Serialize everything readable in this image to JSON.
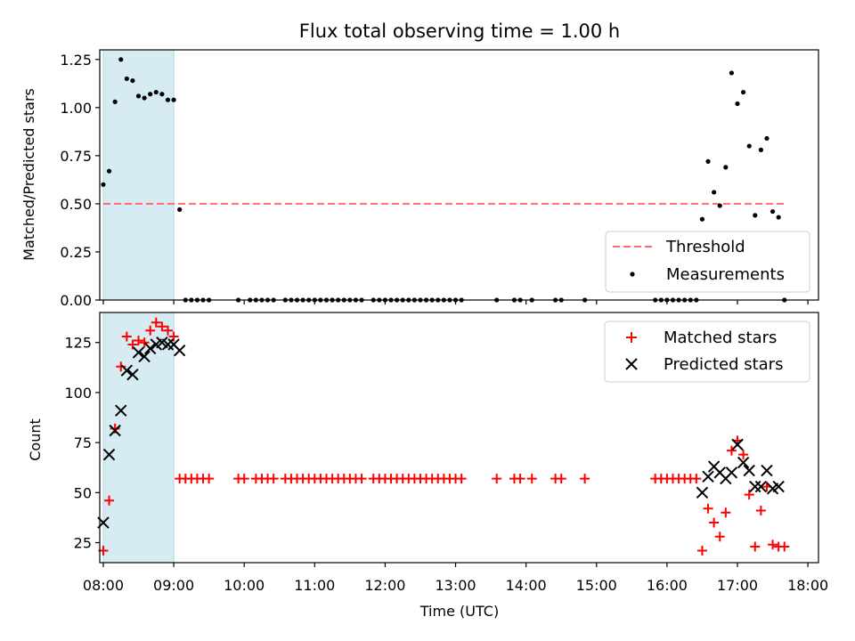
{
  "chart_data": {
    "title": "Flux total observing time = 1.00 h",
    "xlabel": "Time (UTC)",
    "xticks": [
      "08:00",
      "09:00",
      "10:00",
      "11:00",
      "12:00",
      "13:00",
      "14:00",
      "15:00",
      "16:00",
      "17:00",
      "18:00"
    ],
    "xlim_hours": [
      7.95,
      18.15
    ],
    "highlight_span": {
      "from": "08:00",
      "to": "09:00",
      "color": "#add8e6"
    },
    "colors": {
      "measurements": "#000000",
      "threshold": "#ff6b6b",
      "matched": "#ff0000",
      "predicted": "#000000"
    },
    "panels": [
      {
        "type": "scatter",
        "ylabel": "Matched/Predicted stars",
        "ylim": [
          0,
          1.3
        ],
        "yticks": [
          "0.00",
          "0.25",
          "0.50",
          "0.75",
          "1.00",
          "1.25"
        ],
        "legend": {
          "placement": "lower right",
          "entries": [
            "Threshold",
            "Measurements"
          ]
        },
        "threshold": {
          "name": "Threshold",
          "value": 0.5,
          "x_range": [
            "08:00",
            "17:40"
          ]
        },
        "series": [
          {
            "name": "Measurements",
            "marker": "dot",
            "points": [
              [
                "08:00",
                0.6
              ],
              [
                "08:05",
                0.67
              ],
              [
                "08:10",
                1.03
              ],
              [
                "08:15",
                1.25
              ],
              [
                "08:20",
                1.15
              ],
              [
                "08:25",
                1.14
              ],
              [
                "08:30",
                1.06
              ],
              [
                "08:35",
                1.05
              ],
              [
                "08:40",
                1.07
              ],
              [
                "08:45",
                1.08
              ],
              [
                "08:50",
                1.07
              ],
              [
                "08:55",
                1.04
              ],
              [
                "09:00",
                1.04
              ],
              [
                "09:05",
                0.47
              ],
              [
                "09:10",
                0
              ],
              [
                "09:15",
                0
              ],
              [
                "09:20",
                0
              ],
              [
                "09:25",
                0
              ],
              [
                "09:30",
                0
              ],
              [
                "09:55",
                0
              ],
              [
                "10:05",
                0
              ],
              [
                "10:10",
                0
              ],
              [
                "10:15",
                0
              ],
              [
                "10:20",
                0
              ],
              [
                "10:25",
                0
              ],
              [
                "10:35",
                0
              ],
              [
                "10:40",
                0
              ],
              [
                "10:45",
                0
              ],
              [
                "10:50",
                0
              ],
              [
                "10:55",
                0
              ],
              [
                "11:00",
                0
              ],
              [
                "11:05",
                0
              ],
              [
                "11:10",
                0
              ],
              [
                "11:15",
                0
              ],
              [
                "11:20",
                0
              ],
              [
                "11:25",
                0
              ],
              [
                "11:30",
                0
              ],
              [
                "11:35",
                0
              ],
              [
                "11:40",
                0
              ],
              [
                "11:50",
                0
              ],
              [
                "11:55",
                0
              ],
              [
                "12:00",
                0
              ],
              [
                "12:05",
                0
              ],
              [
                "12:10",
                0
              ],
              [
                "12:15",
                0
              ],
              [
                "12:20",
                0
              ],
              [
                "12:25",
                0
              ],
              [
                "12:30",
                0
              ],
              [
                "12:35",
                0
              ],
              [
                "12:40",
                0
              ],
              [
                "12:45",
                0
              ],
              [
                "12:50",
                0
              ],
              [
                "12:55",
                0
              ],
              [
                "13:00",
                0
              ],
              [
                "13:05",
                0
              ],
              [
                "13:35",
                0
              ],
              [
                "13:50",
                0
              ],
              [
                "13:55",
                0
              ],
              [
                "14:05",
                0
              ],
              [
                "14:25",
                0
              ],
              [
                "14:30",
                0
              ],
              [
                "14:50",
                0
              ],
              [
                "15:50",
                0
              ],
              [
                "15:55",
                0
              ],
              [
                "16:00",
                0
              ],
              [
                "16:05",
                0
              ],
              [
                "16:10",
                0
              ],
              [
                "16:15",
                0
              ],
              [
                "16:20",
                0
              ],
              [
                "16:25",
                0
              ],
              [
                "16:30",
                0.42
              ],
              [
                "16:35",
                0.72
              ],
              [
                "16:40",
                0.56
              ],
              [
                "16:45",
                0.49
              ],
              [
                "16:50",
                0.69
              ],
              [
                "16:55",
                1.18
              ],
              [
                "17:00",
                1.02
              ],
              [
                "17:05",
                1.08
              ],
              [
                "17:10",
                0.8
              ],
              [
                "17:15",
                0.44
              ],
              [
                "17:20",
                0.78
              ],
              [
                "17:25",
                0.84
              ],
              [
                "17:30",
                0.46
              ],
              [
                "17:35",
                0.43
              ],
              [
                "17:40",
                0
              ]
            ]
          }
        ]
      },
      {
        "type": "scatter",
        "ylabel": "Count",
        "ylim": [
          15,
          140
        ],
        "yticks": [
          "25",
          "50",
          "75",
          "100",
          "125"
        ],
        "legend": {
          "placement": "upper right",
          "entries": [
            "Matched stars",
            "Predicted stars"
          ]
        },
        "series": [
          {
            "name": "Matched stars",
            "marker": "plus",
            "points": [
              [
                "08:00",
                21
              ],
              [
                "08:05",
                46
              ],
              [
                "08:10",
                82
              ],
              [
                "08:15",
                113
              ],
              [
                "08:20",
                128
              ],
              [
                "08:25",
                124
              ],
              [
                "08:30",
                126
              ],
              [
                "08:35",
                125
              ],
              [
                "08:40",
                131
              ],
              [
                "08:45",
                135
              ],
              [
                "08:50",
                133
              ],
              [
                "08:55",
                131
              ],
              [
                "09:00",
                128
              ],
              [
                "09:05",
                57
              ],
              [
                "09:10",
                57
              ],
              [
                "09:15",
                57
              ],
              [
                "09:20",
                57
              ],
              [
                "09:25",
                57
              ],
              [
                "09:30",
                57
              ],
              [
                "09:55",
                57
              ],
              [
                "10:00",
                57
              ],
              [
                "10:10",
                57
              ],
              [
                "10:15",
                57
              ],
              [
                "10:20",
                57
              ],
              [
                "10:25",
                57
              ],
              [
                "10:35",
                57
              ],
              [
                "10:40",
                57
              ],
              [
                "10:45",
                57
              ],
              [
                "10:50",
                57
              ],
              [
                "10:55",
                57
              ],
              [
                "11:00",
                57
              ],
              [
                "11:05",
                57
              ],
              [
                "11:10",
                57
              ],
              [
                "11:15",
                57
              ],
              [
                "11:20",
                57
              ],
              [
                "11:25",
                57
              ],
              [
                "11:30",
                57
              ],
              [
                "11:35",
                57
              ],
              [
                "11:40",
                57
              ],
              [
                "11:50",
                57
              ],
              [
                "11:55",
                57
              ],
              [
                "12:00",
                57
              ],
              [
                "12:05",
                57
              ],
              [
                "12:10",
                57
              ],
              [
                "12:15",
                57
              ],
              [
                "12:20",
                57
              ],
              [
                "12:25",
                57
              ],
              [
                "12:30",
                57
              ],
              [
                "12:35",
                57
              ],
              [
                "12:40",
                57
              ],
              [
                "12:45",
                57
              ],
              [
                "12:50",
                57
              ],
              [
                "12:55",
                57
              ],
              [
                "13:00",
                57
              ],
              [
                "13:05",
                57
              ],
              [
                "13:35",
                57
              ],
              [
                "13:50",
                57
              ],
              [
                "13:55",
                57
              ],
              [
                "14:05",
                57
              ],
              [
                "14:25",
                57
              ],
              [
                "14:30",
                57
              ],
              [
                "14:50",
                57
              ],
              [
                "15:50",
                57
              ],
              [
                "15:55",
                57
              ],
              [
                "16:00",
                57
              ],
              [
                "16:05",
                57
              ],
              [
                "16:10",
                57
              ],
              [
                "16:15",
                57
              ],
              [
                "16:20",
                57
              ],
              [
                "16:25",
                57
              ],
              [
                "16:30",
                21
              ],
              [
                "16:35",
                42
              ],
              [
                "16:40",
                35
              ],
              [
                "16:45",
                28
              ],
              [
                "16:50",
                40
              ],
              [
                "16:55",
                71
              ],
              [
                "17:00",
                76
              ],
              [
                "17:05",
                69
              ],
              [
                "17:10",
                49
              ],
              [
                "17:15",
                23
              ],
              [
                "17:20",
                41
              ],
              [
                "17:25",
                53
              ],
              [
                "17:30",
                24
              ],
              [
                "17:35",
                23
              ],
              [
                "17:40",
                23
              ]
            ]
          },
          {
            "name": "Predicted stars",
            "marker": "x",
            "points": [
              [
                "08:00",
                35
              ],
              [
                "08:05",
                69
              ],
              [
                "08:10",
                81
              ],
              [
                "08:15",
                91
              ],
              [
                "08:20",
                111
              ],
              [
                "08:25",
                109
              ],
              [
                "08:30",
                120
              ],
              [
                "08:35",
                118
              ],
              [
                "08:40",
                122
              ],
              [
                "08:45",
                124
              ],
              [
                "08:50",
                125
              ],
              [
                "08:55",
                124
              ],
              [
                "09:00",
                124
              ],
              [
                "09:05",
                121
              ],
              [
                "16:30",
                50
              ],
              [
                "16:35",
                58
              ],
              [
                "16:40",
                63
              ],
              [
                "16:45",
                60
              ],
              [
                "16:50",
                57
              ],
              [
                "16:55",
                60
              ],
              [
                "17:00",
                74
              ],
              [
                "17:05",
                65
              ],
              [
                "17:10",
                61
              ],
              [
                "17:15",
                53
              ],
              [
                "17:20",
                53
              ],
              [
                "17:25",
                61
              ],
              [
                "17:30",
                52
              ],
              [
                "17:35",
                53
              ]
            ]
          }
        ]
      }
    ]
  }
}
